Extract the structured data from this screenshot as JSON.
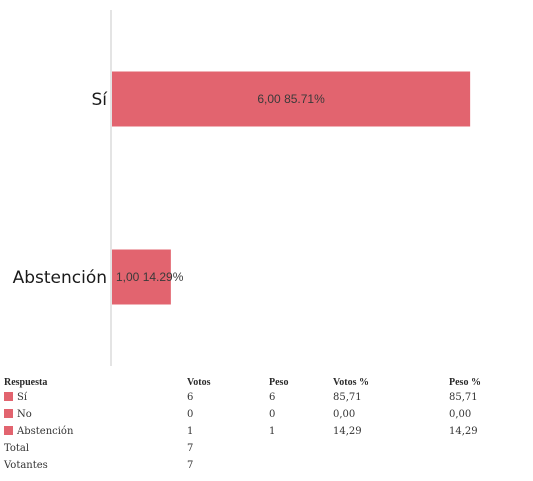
{
  "chart_data": {
    "type": "bar",
    "orientation": "horizontal",
    "categories": [
      "Sí",
      "Abstención"
    ],
    "values": [
      6,
      1
    ],
    "percentages": [
      85.71,
      14.29
    ],
    "data_labels": [
      "6,00 85.71%",
      "1,00 14.29%"
    ],
    "xlim": [
      0,
      7
    ],
    "grid": false,
    "bar_color": "#e2646f",
    "title": ""
  },
  "table": {
    "headers": [
      "Respuesta",
      "Votos",
      "Peso",
      "Votos %",
      "Peso %"
    ],
    "rows": [
      {
        "label": "Sí",
        "color": "#e2646f",
        "votos": "6",
        "peso": "6",
        "votos_pct": "85,71",
        "peso_pct": "85,71"
      },
      {
        "label": "No",
        "color": "#e2646f",
        "votos": "0",
        "peso": "0",
        "votos_pct": "0,00",
        "peso_pct": "0,00"
      },
      {
        "label": "Abstención",
        "color": "#e2646f",
        "votos": "1",
        "peso": "1",
        "votos_pct": "14,29",
        "peso_pct": "14,29"
      }
    ],
    "totals": [
      {
        "label": "Total",
        "value": "7"
      },
      {
        "label": "Votantes",
        "value": "7"
      }
    ]
  }
}
